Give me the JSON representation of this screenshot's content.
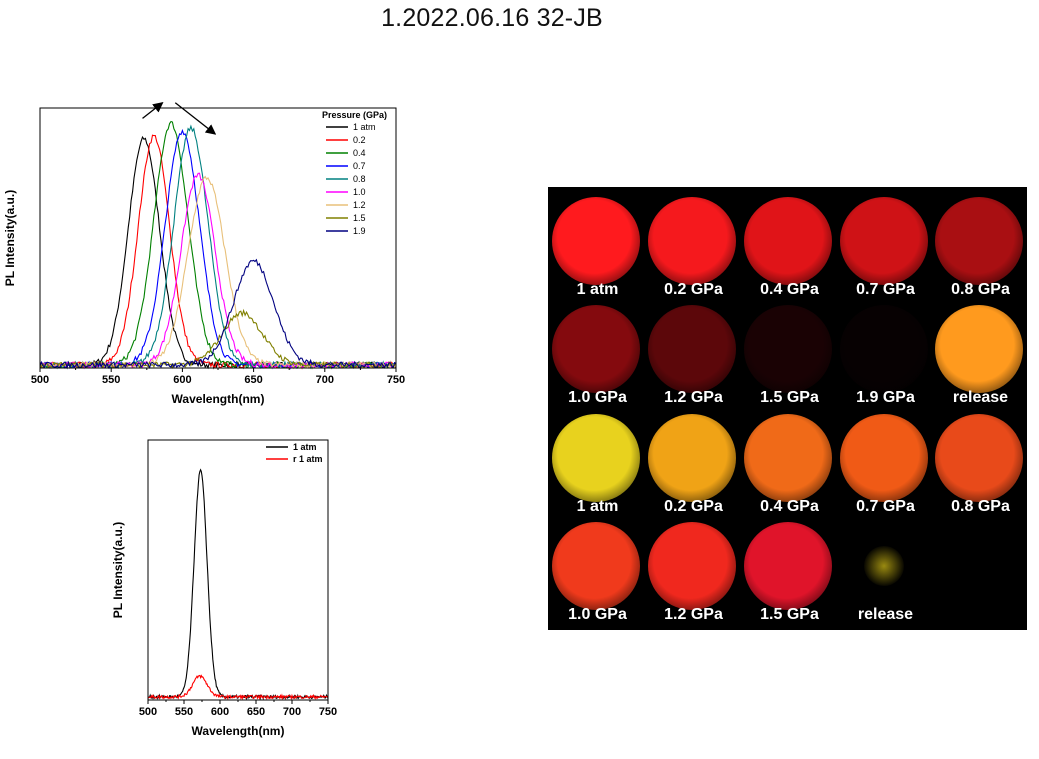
{
  "page": {
    "title": "1.2022.06.16  32-JB"
  },
  "chart_data": [
    {
      "type": "line",
      "xlabel": "Wavelength(nm)",
      "ylabel": "PL Intensity(a.u.)",
      "xlim": [
        500,
        750
      ],
      "xticks": [
        500,
        550,
        600,
        650,
        700,
        750
      ],
      "yticks_shown": false,
      "legend": {
        "title": "Pressure (GPa)",
        "placement": "top-right"
      },
      "annotations": [
        "arrow-up-right",
        "arrow-down-right"
      ],
      "series": [
        {
          "name": "1 atm",
          "color": "#000000",
          "peak_x": 573,
          "peak_y": 0.87,
          "width": 11
        },
        {
          "name": "0.2",
          "color": "#ff0000",
          "peak_x": 580,
          "peak_y": 0.88,
          "width": 11
        },
        {
          "name": "0.4",
          "color": "#008000",
          "peak_x": 592,
          "peak_y": 0.93,
          "width": 12
        },
        {
          "name": "0.7",
          "color": "#0000ff",
          "peak_x": 600,
          "peak_y": 0.9,
          "width": 12
        },
        {
          "name": "0.8",
          "color": "#008080",
          "peak_x": 606,
          "peak_y": 0.91,
          "width": 12
        },
        {
          "name": "1.0",
          "color": "#ff00ff",
          "peak_x": 611,
          "peak_y": 0.73,
          "width": 12
        },
        {
          "name": "1.2",
          "color": "#e8c07a",
          "peak_x": 617,
          "peak_y": 0.72,
          "width": 13
        },
        {
          "name": "1.5",
          "color": "#808000",
          "peak_x": 642,
          "peak_y": 0.2,
          "width": 14
        },
        {
          "name": "1.9",
          "color": "#000080",
          "peak_x": 650,
          "peak_y": 0.4,
          "width": 14
        }
      ]
    },
    {
      "type": "line",
      "xlabel": "Wavelength(nm)",
      "ylabel": "PL Intensity(a.u.)",
      "xlim": [
        500,
        750
      ],
      "xticks": [
        500,
        550,
        600,
        650,
        700,
        750
      ],
      "yticks_shown": false,
      "legend": {
        "placement": "top-right"
      },
      "series": [
        {
          "name": "1 atm",
          "color": "#000000",
          "peak_x": 573,
          "peak_y": 0.87,
          "width": 9
        },
        {
          "name": "r 1 atm",
          "color": "#ff0000",
          "peak_x": 572,
          "peak_y": 0.08,
          "width": 10
        }
      ]
    }
  ],
  "photo_grid": {
    "rows": [
      [
        {
          "label": "1 atm",
          "color": "#ff1a1e"
        },
        {
          "label": "0.2 GPa",
          "color": "#f5191d"
        },
        {
          "label": "0.4 GPa",
          "color": "#e01418"
        },
        {
          "label": "0.7 GPa",
          "color": "#cf1216"
        },
        {
          "label": "0.8 GPa",
          "color": "#a90f12"
        }
      ],
      [
        {
          "label": "1.0 GPa",
          "color": "#840a0e"
        },
        {
          "label": "1.2 GPa",
          "color": "#5c070a"
        },
        {
          "label": "1.5 GPa",
          "color": "#1a0204"
        },
        {
          "label": "1.9 GPa",
          "color": "#070102"
        },
        {
          "label": "release",
          "color": "#ff9a1e"
        }
      ],
      [
        {
          "label": "1 atm",
          "color": "#e8d21e"
        },
        {
          "label": "0.2 GPa",
          "color": "#f0a316"
        },
        {
          "label": "0.4 GPa",
          "color": "#f06a18"
        },
        {
          "label": "0.7 GPa",
          "color": "#f05a16"
        },
        {
          "label": "0.8 GPa",
          "color": "#e84a1a"
        }
      ],
      [
        {
          "label": "1.0 GPa",
          "color": "#f03a1c"
        },
        {
          "label": "1.2 GPa",
          "color": "#f0281e"
        },
        {
          "label": "1.5 GPa",
          "color": "#e0142a"
        },
        {
          "label": "release",
          "color": "#9a8a10"
        }
      ]
    ]
  }
}
